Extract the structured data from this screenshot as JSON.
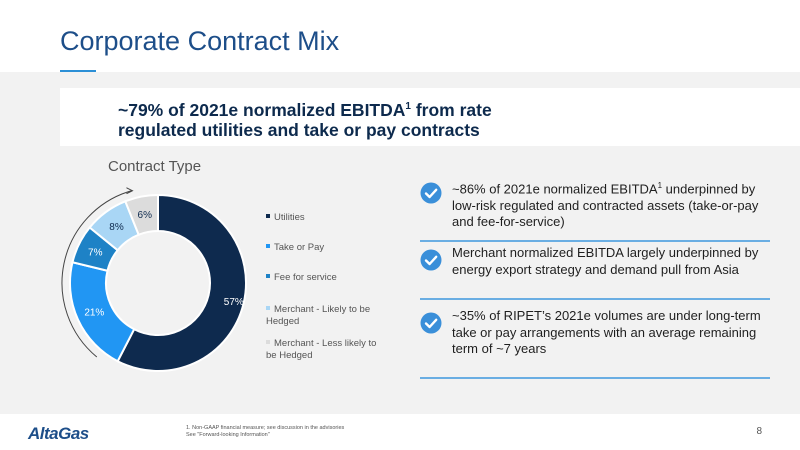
{
  "slide": {
    "title": "Corporate Contract Mix",
    "headline_line1": "~79% of 2021e normalized EBITDA",
    "headline_sup": "1",
    "headline_line1_end": " from rate",
    "headline_line2": "regulated utilities and take or pay contracts"
  },
  "chart_data": {
    "type": "pie",
    "title": "Contract Type",
    "categories": [
      "Utilities",
      "Take or Pay",
      "Fee for service",
      "Merchant - Likely to be Hedged",
      "Merchant - Less likely to be Hedged"
    ],
    "values": [
      57,
      21,
      7,
      8,
      6
    ],
    "labels": [
      "57%",
      "21%",
      "7%",
      "8%",
      "6%"
    ],
    "colors": [
      "#0e2a4e",
      "#2196f3",
      "#1e82c6",
      "#a9d6f5",
      "#dcdcdc"
    ],
    "label_colors": [
      "#ffffff",
      "#ffffff",
      "#ffffff",
      "#0e2a4e",
      "#0e2a4e"
    ],
    "legend_position": "right"
  },
  "points": [
    {
      "icon": "check-circle-icon",
      "text_pre": "~86% of 2021e normalized EBITDA",
      "sup": "1",
      "text_post": " underpinned by low-risk regulated and contracted assets (take-or-pay and fee-for-service)"
    },
    {
      "icon": "check-circle-icon",
      "text_pre": "Merchant normalized EBITDA largely underpinned by energy export strategy and demand pull from Asia",
      "sup": "",
      "text_post": ""
    },
    {
      "icon": "check-circle-icon",
      "text_pre": "~35% of RIPET’s 2021e volumes are under long-term take or pay arrangements with an average remaining term of ~7 years",
      "sup": "",
      "text_post": ""
    }
  ],
  "footer": {
    "logo": "AltaGas",
    "footnote_line1": "1. Non-GAAP financial measure; see discussion in the advisories",
    "footnote_line2": "See \"Forward-looking Information\"",
    "page_number": "8"
  },
  "colors": {
    "title": "#1d4e89",
    "accent": "#2b8fd6",
    "check": "#3a8fd9",
    "divider": "#6aaee3"
  }
}
